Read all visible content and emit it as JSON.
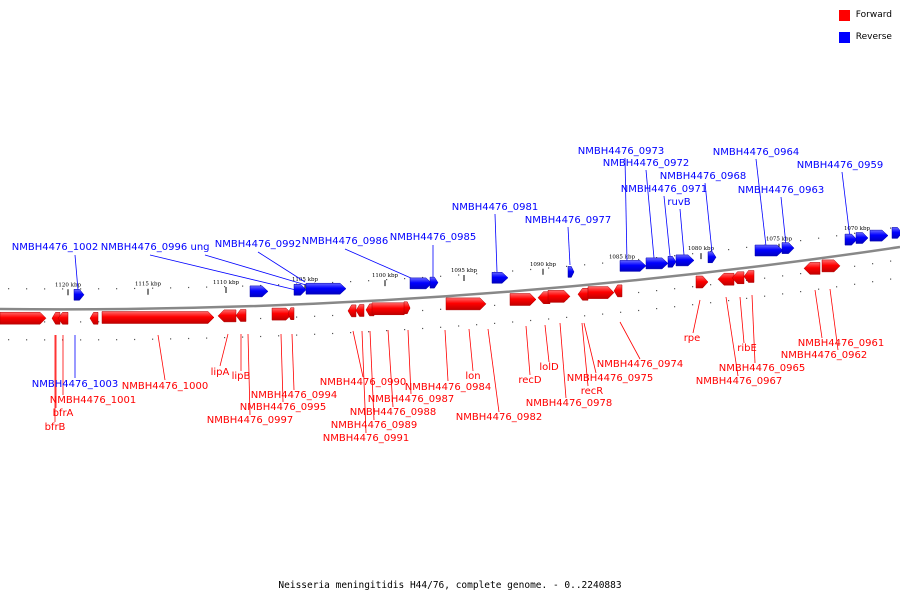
{
  "legend": {
    "forward_label": "Forward",
    "reverse_label": "Reverse",
    "forward_color": "#ff0000",
    "reverse_color": "#0000ff"
  },
  "caption": "Neisseria meningitidis H44/76, complete genome. - 0..2240883",
  "scale_ticks": [
    {
      "pos": 1120,
      "label": "1120 kbp"
    },
    {
      "pos": 1115,
      "label": "1115 kbp"
    },
    {
      "pos": 1110,
      "label": "1110 kbp"
    },
    {
      "pos": 1105,
      "label": "1105 kbp"
    },
    {
      "pos": 1100,
      "label": "1100 kbp"
    },
    {
      "pos": 1095,
      "label": "1095 kbp"
    },
    {
      "pos": 1090,
      "label": "1090 kbp"
    },
    {
      "pos": 1085,
      "label": "1085 kbp"
    },
    {
      "pos": 1080,
      "label": "1080 kbp"
    },
    {
      "pos": 1075,
      "label": "1075 kbp"
    },
    {
      "pos": 1070,
      "label": "1070 kbp"
    }
  ],
  "reverse_genes": [
    "NMBH4476_1002",
    "NMBH4476_0996",
    "ung",
    "NMBH4476_0992",
    "NMBH4476_0986",
    "NMBH4476_0985",
    "NMBH4476_0981",
    "NMBH4476_0977",
    "NMBH4476_0973",
    "NMBH4476_0972",
    "NMBH4476_0971",
    "ruvB",
    "NMBH4476_0968",
    "NMBH4476_0964",
    "NMBH4476_0963",
    "NMBH4476_0959",
    "NMBH4476_1003"
  ],
  "forward_genes": [
    "NMBH4476_1001",
    "bfrA",
    "bfrB",
    "NMBH4476_1000",
    "lipA",
    "lipB",
    "NMBH4476_0994",
    "NMBH4476_0995",
    "NMBH4476_0997",
    "NMBH4476_0990",
    "NMBH4476_0984",
    "NMBH4476_0987",
    "NMBH4476_0988",
    "NMBH4476_0989",
    "NMBH4476_0991",
    "lon",
    "NMBH4476_0982",
    "recD",
    "lolD",
    "NMBH4476_0975",
    "recR",
    "NMBH4476_0978",
    "NMBH4476_0974",
    "rpe",
    "ribE",
    "NMBH4476_0965",
    "NMBH4476_0967",
    "NMBH4476_0961",
    "NMBH4476_0962"
  ]
}
